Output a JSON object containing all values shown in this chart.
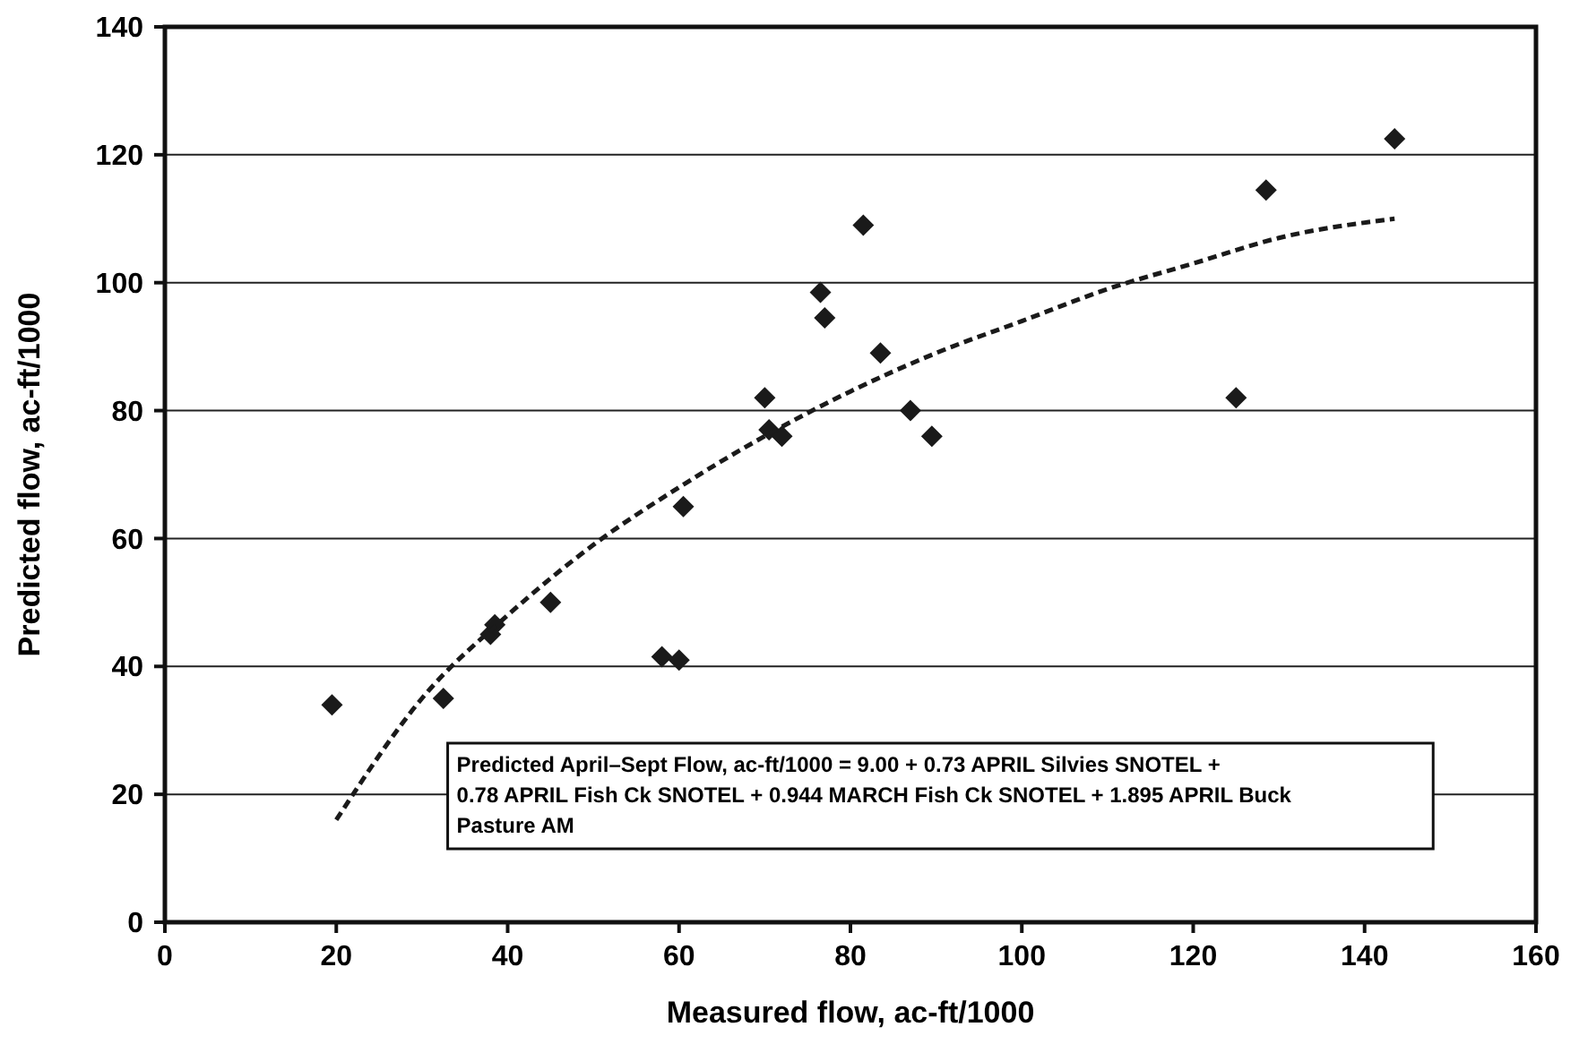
{
  "chart_data": {
    "type": "scatter",
    "xlabel": "Measured flow, ac-ft/1000",
    "ylabel": "Predicted flow, ac-ft/1000",
    "xlim": [
      0,
      160
    ],
    "xticks": [
      0,
      20,
      40,
      60,
      80,
      100,
      120,
      140,
      160
    ],
    "ylim": [
      0,
      140
    ],
    "yticks": [
      0,
      20,
      40,
      60,
      80,
      100,
      120,
      140
    ],
    "grid": "y",
    "annotations": [
      "Predicted April–Sept Flow, ac-ft/1000 = 9.00 + 0.73 APRIL Silvies SNOTEL + 0.78 APRIL Fish Ck SNOTEL +  0.944 MARCH Fish Ck SNOTEL + 1.895 APRIL Buck Pasture AM"
    ],
    "series": [
      {
        "color": "#1a1a1a",
        "marker": "diamond",
        "x": [
          19.5,
          32.5,
          38,
          38.5,
          45,
          58,
          60,
          60.5,
          70,
          70.5,
          72,
          76.5,
          77,
          81.5,
          83.5,
          87,
          89.5,
          125,
          128.5,
          143.5
        ],
        "values": [
          34,
          35,
          45,
          46.5,
          50,
          41.5,
          41,
          65,
          82,
          77,
          76,
          98.5,
          94.5,
          109,
          89,
          80,
          76,
          82,
          114.5,
          122.5
        ]
      },
      {
        "type": "line",
        "color": "#1a1a1a",
        "line_style": "dashed",
        "marker": "none",
        "x": [
          20,
          30,
          40,
          50,
          60,
          70,
          80,
          90,
          100,
          110,
          120,
          130,
          143.5
        ],
        "values": [
          16,
          35,
          48,
          59,
          68,
          76,
          83,
          89,
          94,
          99,
          103,
          107,
          110
        ]
      }
    ]
  }
}
